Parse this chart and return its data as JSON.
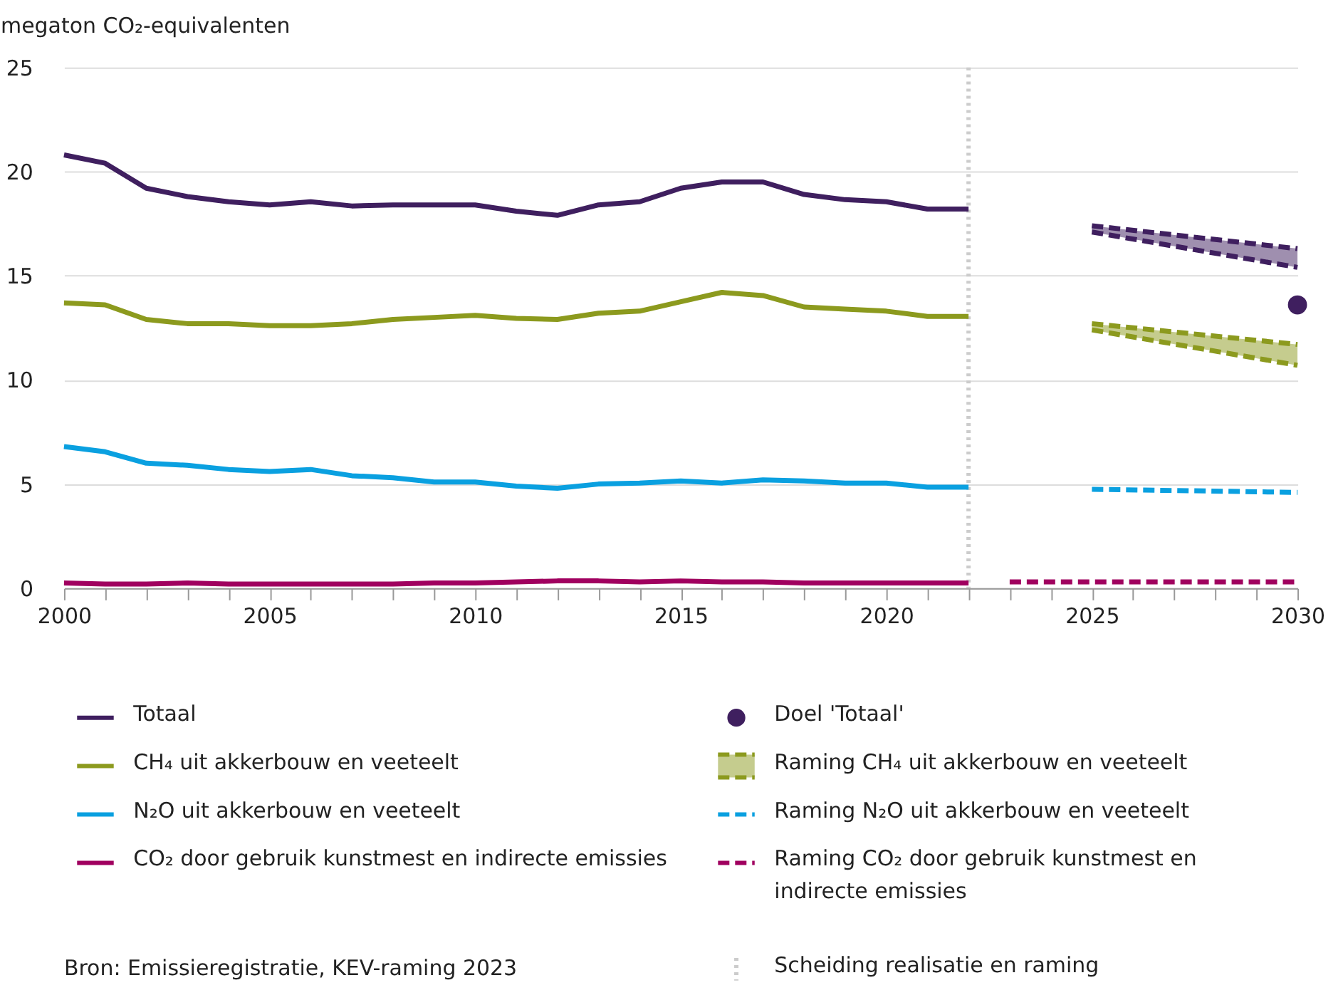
{
  "chart_data": {
    "type": "line",
    "ylabel": "megaton CO₂-equivalenten",
    "xlim": [
      2000,
      2030
    ],
    "xticks": [
      2000,
      {
        "value": 2001,
        "label": null
      },
      {
        "value": 2002,
        "label": null
      },
      {
        "value": 2003,
        "label": null
      },
      {
        "value": 2004,
        "label": null
      },
      2005,
      {
        "value": 2006,
        "label": null
      },
      {
        "value": 2007,
        "label": null
      },
      {
        "value": 2008,
        "label": null
      },
      {
        "value": 2009,
        "label": null
      },
      2010,
      {
        "value": 2011,
        "label": null
      },
      {
        "value": 2012,
        "label": null
      },
      {
        "value": 2013,
        "label": null
      },
      {
        "value": 2014,
        "label": null
      },
      2015,
      {
        "value": 2016,
        "label": null
      },
      {
        "value": 2017,
        "label": null
      },
      {
        "value": 2018,
        "label": null
      },
      {
        "value": 2019,
        "label": null
      },
      2020,
      {
        "value": 2021,
        "label": null
      },
      {
        "value": 2022,
        "label": null
      },
      {
        "value": 2023,
        "label": null
      },
      {
        "value": 2024,
        "label": null
      },
      2025,
      {
        "value": 2026,
        "label": null
      },
      {
        "value": 2027,
        "label": null
      },
      {
        "value": 2028,
        "label": null
      },
      {
        "value": 2029,
        "label": null
      },
      2030
    ],
    "ylim": [
      0,
      25
    ],
    "yticks": [
      0,
      5,
      10,
      15,
      20,
      25
    ],
    "grid": "y",
    "legend": "bottom",
    "x": [
      2000,
      2001,
      2002,
      2003,
      2004,
      2005,
      2006,
      2007,
      2008,
      2009,
      2010,
      2011,
      2012,
      2013,
      2014,
      2015,
      2016,
      2017,
      2018,
      2019,
      2020,
      2021,
      2022
    ],
    "series": [
      {
        "name": "Totaal",
        "color": "#3f1f5f",
        "line_style": "solid",
        "values": [
          20.8,
          20.4,
          19.2,
          18.8,
          18.55,
          18.4,
          18.55,
          18.35,
          18.4,
          18.4,
          18.4,
          18.1,
          17.9,
          18.4,
          18.55,
          19.2,
          19.5,
          19.5,
          18.9,
          18.65,
          18.55,
          18.2,
          18.2
        ]
      },
      {
        "name": "CH₄ uit akkerbouw en veeteelt",
        "color": "#8c9a1e",
        "line_style": "solid",
        "values": [
          13.7,
          13.6,
          12.9,
          12.7,
          12.7,
          12.6,
          12.6,
          12.7,
          12.9,
          13.0,
          13.1,
          12.95,
          12.9,
          13.2,
          13.3,
          13.75,
          14.2,
          14.05,
          13.5,
          13.4,
          13.3,
          13.05,
          13.05
        ]
      },
      {
        "name": "N₂O uit akkerbouw en veeteelt",
        "color": "#0aa0e0",
        "line_style": "solid",
        "values": [
          6.8,
          6.55,
          6.0,
          5.9,
          5.7,
          5.6,
          5.7,
          5.4,
          5.3,
          5.1,
          5.1,
          4.9,
          4.8,
          5.0,
          5.05,
          5.15,
          5.05,
          5.2,
          5.15,
          5.05,
          5.05,
          4.85,
          4.85
        ]
      },
      {
        "name": "CO₂ door gebruik kunstmest en indirecte emissies",
        "color": "#a0005f",
        "line_style": "solid",
        "values": [
          0.25,
          0.2,
          0.2,
          0.25,
          0.2,
          0.2,
          0.2,
          0.2,
          0.2,
          0.25,
          0.25,
          0.3,
          0.35,
          0.35,
          0.3,
          0.35,
          0.3,
          0.3,
          0.25,
          0.25,
          0.25,
          0.25,
          0.25
        ]
      },
      {
        "name": "Doel 'Totaal'",
        "type": "scatter",
        "marker": "circle",
        "color": "#3f1f5f",
        "x": [
          2030
        ],
        "values": [
          13.6
        ]
      },
      {
        "name": "Raming CH₄ uit akkerbouw en veeteelt",
        "color": "#8c9a1e",
        "line_style": "dashed",
        "x": [
          2025,
          2030
        ],
        "values": [
          12.7,
          11.7
        ],
        "lower": [
          12.4,
          10.7
        ],
        "upper": [
          12.7,
          11.7
        ]
      },
      {
        "color": "#8c9a1e",
        "line_style": "dashed",
        "x": [
          2025,
          2030
        ],
        "values": [
          12.4,
          10.7
        ]
      },
      {
        "name": "Raming N₂O uit akkerbouw en veeteelt",
        "color": "#0aa0e0",
        "line_style": "dashed",
        "x": [
          2025,
          2030
        ],
        "values": [
          4.75,
          4.6
        ]
      },
      {
        "name": "Raming CO₂ door gebruik kunstmest en indirecte emissies",
        "color": "#a0005f",
        "line_style": "dashed",
        "x": [
          2023,
          2030
        ],
        "values": [
          0.3,
          0.3
        ]
      },
      {
        "color": "#3f1f5f",
        "line_style": "dashed",
        "x": [
          2025,
          2030
        ],
        "values": [
          17.4,
          16.3
        ],
        "lower": [
          17.1,
          15.4
        ],
        "upper": [
          17.4,
          16.3
        ]
      },
      {
        "color": "#3f1f5f",
        "line_style": "dashed",
        "x": [
          2025,
          2030
        ],
        "values": [
          17.1,
          15.4
        ]
      }
    ],
    "ref_lines": [
      {
        "axis": "x",
        "value": 2022,
        "label": "Scheiding realisatie en raming",
        "color": "#cccccc",
        "line_style": "dotted"
      }
    ],
    "annotations": [
      "Bron: Emissieregistratie, KEV-raming 2023"
    ]
  }
}
